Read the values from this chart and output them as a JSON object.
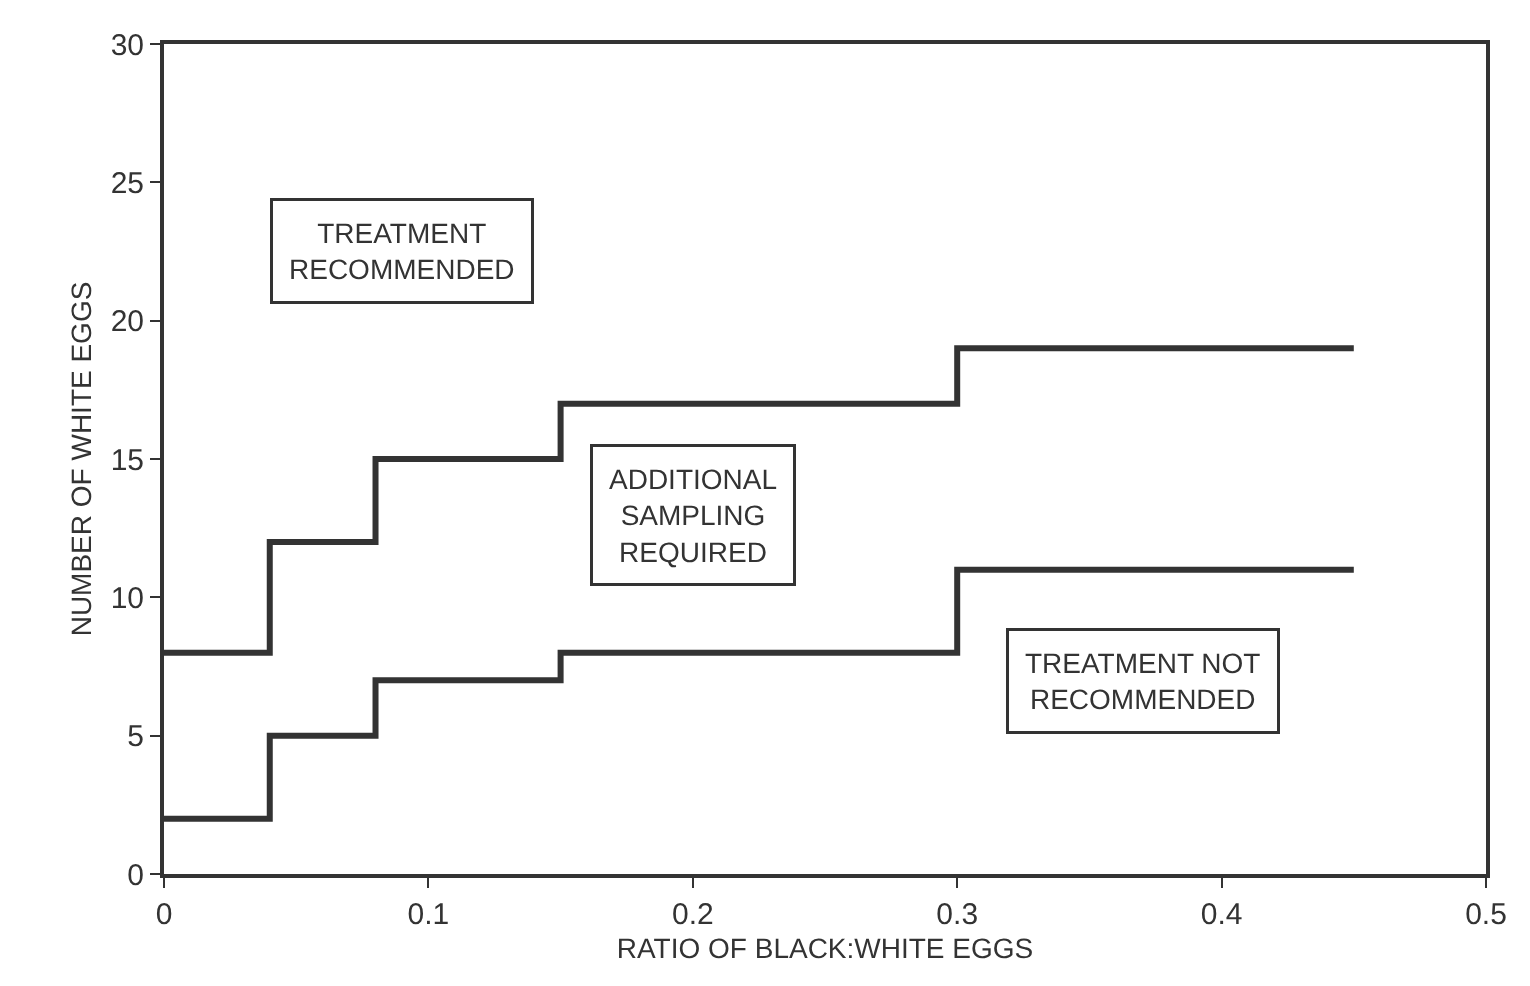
{
  "chart_data": {
    "type": "step",
    "xlabel": "RATIO OF BLACK:WHITE EGGS",
    "ylabel": "NUMBER OF WHITE EGGS",
    "x": [
      0,
      0.04,
      0.08,
      0.15,
      0.3,
      0.45
    ],
    "series": [
      {
        "color": "#333333",
        "values": [
          8,
          12,
          15,
          17,
          19,
          19
        ]
      },
      {
        "color": "#333333",
        "values": [
          2,
          5,
          7,
          8,
          11,
          11
        ]
      }
    ],
    "xlim": [
      0,
      0.5
    ],
    "xticks": [
      0,
      0.1,
      0.2,
      0.3,
      0.4,
      0.5
    ],
    "ylim": [
      0,
      30
    ],
    "yticks": [
      0,
      5,
      10,
      15,
      20,
      25,
      30
    ],
    "marker": "none",
    "line_style": "solid",
    "annotations": [
      "TREATMENT\nRECOMMENDED",
      "ADDITIONAL\nSAMPLING\nREQUIRED",
      "TREATMENT NOT\nRECOMMENDED"
    ]
  }
}
